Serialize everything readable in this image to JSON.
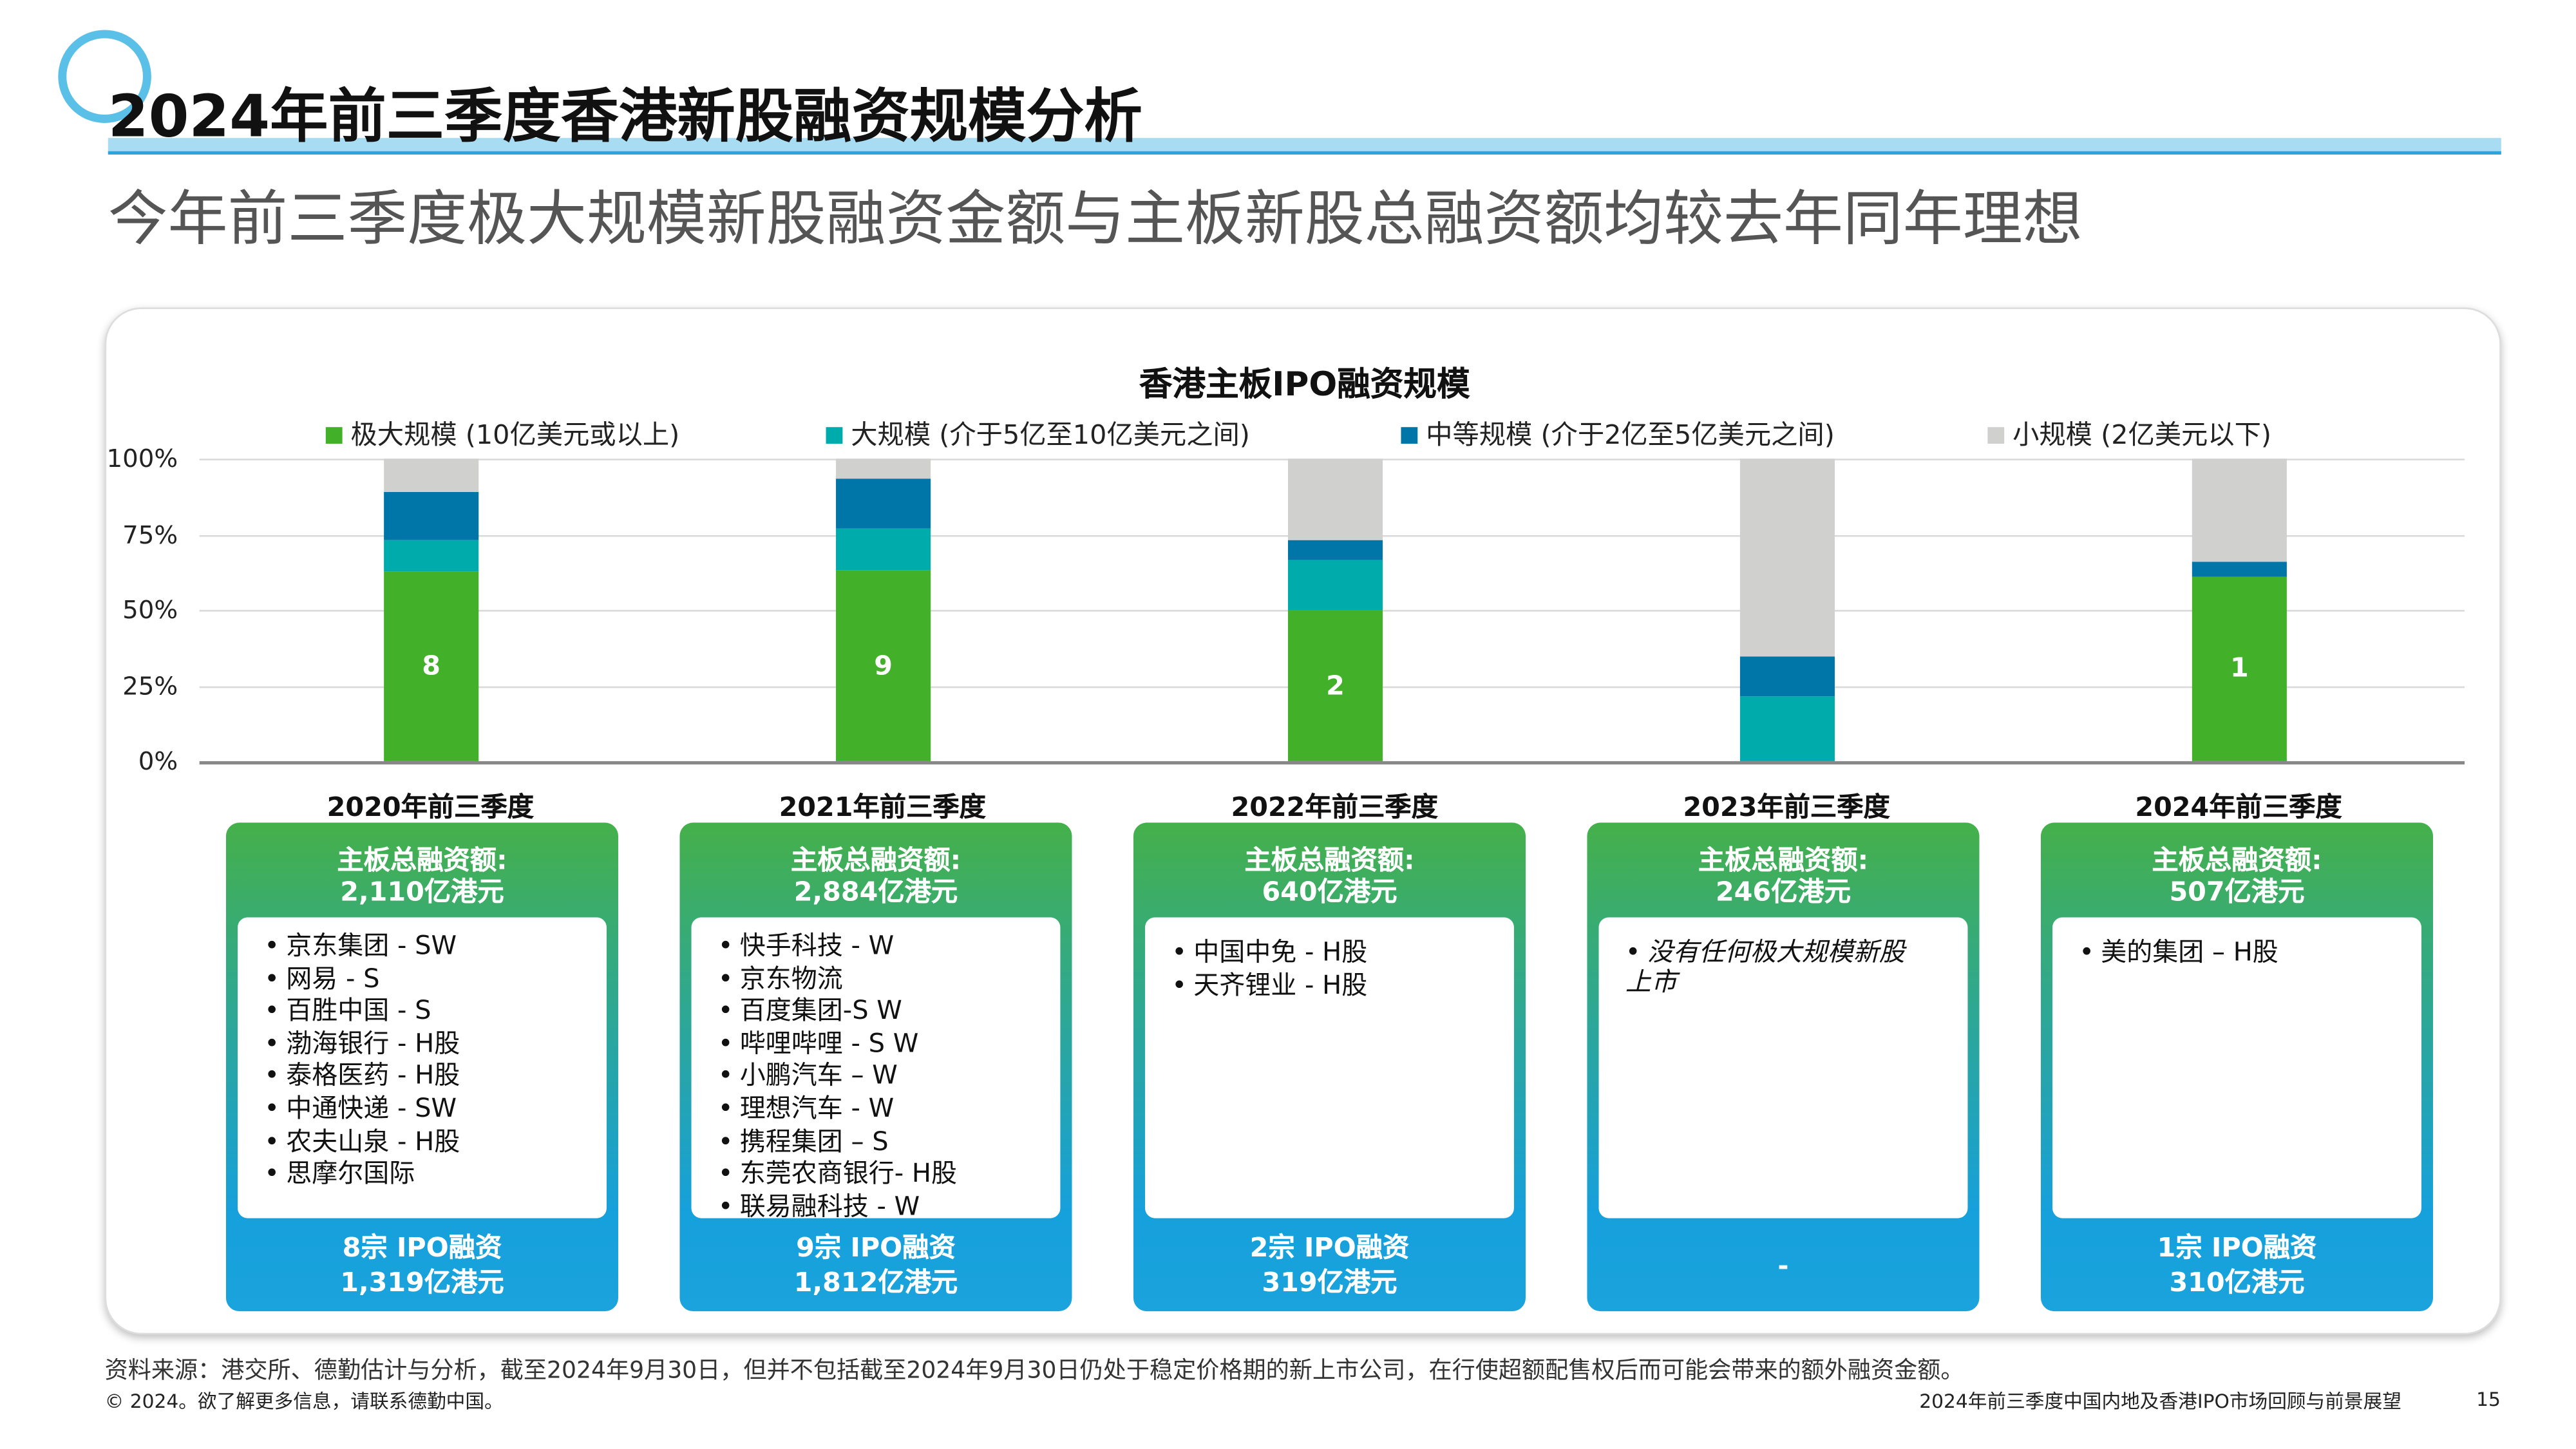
{
  "header": {
    "title": "2024年前三季度香港新股融资规模分析",
    "subtitle": "今年前三季度极大规模新股融资金额与主板新股总融资额均较去年同年理想"
  },
  "chart_data": {
    "type": "bar",
    "stacked": true,
    "title": "香港主板IPO融资规模",
    "categories": [
      "2020年前三季度",
      "2021年前三季度",
      "2022年前三季度",
      "2023年前三季度",
      "2024年前三季度"
    ],
    "yticks": [
      "0%",
      "25%",
      "50%",
      "75%",
      "100%"
    ],
    "ylim": [
      0,
      100
    ],
    "grid": true,
    "legend_position": "top",
    "series": [
      {
        "name": "极大规模 (10亿美元或以上)",
        "color": "#43b02a",
        "values": [
          62.5,
          63,
          50,
          0,
          61
        ],
        "labels": [
          "8",
          "9",
          "2",
          "",
          "1"
        ]
      },
      {
        "name": "大规模 (介于5亿至10亿美元之间)",
        "color": "#00abab",
        "values": [
          10.5,
          14,
          16.5,
          21.5,
          0
        ]
      },
      {
        "name": "中等规模 (介于2亿至5亿美元之间)",
        "color": "#0076a8",
        "values": [
          16,
          16.5,
          6.5,
          13,
          5
        ]
      },
      {
        "name": "小规模 (2亿美元以下)",
        "color": "#d0d0ce",
        "values": [
          11,
          6.5,
          27,
          65.5,
          34
        ]
      }
    ]
  },
  "boxes": [
    {
      "h1": "主板总融资额:",
      "h2": "2,110亿港元",
      "items": [
        "京东集团 - SW",
        "网易 - S",
        "百胜中国 - S",
        "渤海银行 - H股",
        "泰格医药 - H股",
        "中通快递 - SW",
        "农夫山泉 - H股",
        "思摩尔国际"
      ],
      "f1": "8宗 IPO融资",
      "f2": "1,319亿港元"
    },
    {
      "h1": "主板总融资额:",
      "h2": "2,884亿港元",
      "items": [
        "快手科技 - W",
        "京东物流",
        "百度集团-S W",
        "哔哩哔哩 - S W",
        "小鹏汽车 – W",
        "理想汽车 - W",
        "携程集团 – S",
        "东莞农商银行- H股",
        "联易融科技 - W"
      ],
      "f1": "9宗 IPO融资",
      "f2": "1,812亿港元"
    },
    {
      "h1": "主板总融资额:",
      "h2": "640亿港元",
      "items": [
        "中国中免 - H股",
        "天齐锂业 - H股"
      ],
      "f1": "2宗 IPO融资",
      "f2": "319亿港元"
    },
    {
      "h1": "主板总融资额:",
      "h2": "246亿港元",
      "items": [
        "没有任何极大规模新股上市"
      ],
      "f1": "",
      "f2": "-"
    },
    {
      "h1": "主板总融资额:",
      "h2": "507亿港元",
      "items": [
        "美的集团 – H股"
      ],
      "f1": "1宗 IPO融资",
      "f2": "310亿港元"
    }
  ],
  "footer": {
    "source": "资料来源：港交所、德勤估计与分析，截至2024年9月30日，但并不包括截至2024年9月30日仍处于稳定价格期的新上市公司，在行使超额配售权后而可能会带来的额外融资金额。",
    "copyright": "© 2024。欲了解更多信息，请联系德勤中国。",
    "report": "2024年前三季度中国内地及香港IPO市场回顾与前景展望",
    "page": "15"
  }
}
